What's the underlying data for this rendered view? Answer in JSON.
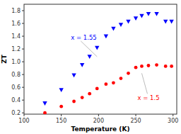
{
  "chart_data": {
    "type": "scatter",
    "x_label": "Temperature (K)",
    "y_label": "ZT",
    "series": [
      {
        "color": "#0000FF",
        "marker": "triangle_down",
        "x": [
          128,
          150,
          167,
          178,
          188,
          198,
          210,
          220,
          230,
          240,
          250,
          258,
          267,
          278,
          290,
          298
        ],
        "values": [
          0.35,
          0.56,
          0.79,
          0.95,
          1.08,
          1.22,
          1.4,
          1.52,
          1.58,
          1.63,
          1.68,
          1.72,
          1.75,
          1.75,
          1.63,
          1.63
        ]
      },
      {
        "color": "#FF0000",
        "marker": "circle",
        "x": [
          128,
          150,
          167,
          178,
          188,
          198,
          210,
          220,
          230,
          240,
          250,
          258,
          267,
          278,
          290,
          298
        ],
        "values": [
          0.2,
          0.3,
          0.38,
          0.44,
          0.5,
          0.58,
          0.65,
          0.67,
          0.74,
          0.82,
          0.91,
          0.93,
          0.94,
          0.95,
          0.93,
          0.93
        ]
      }
    ],
    "annotations": [
      {
        "text": "x = 1.55",
        "x": 198,
        "y": 1.08,
        "color": "#0000FF"
      },
      {
        "text": "x = 1.5",
        "x": 258,
        "y": 0.82,
        "color": "#FF0000"
      }
    ],
    "xlim": [
      100,
      305
    ],
    "ylim": [
      0.18,
      1.9
    ],
    "xticks": [
      100,
      150,
      200,
      250,
      300
    ],
    "yticks": [
      0.2,
      0.4,
      0.6,
      0.8,
      {
        "value": 1.0,
        "label": "1.0"
      },
      1.2,
      1.4,
      1.6,
      1.8
    ]
  }
}
